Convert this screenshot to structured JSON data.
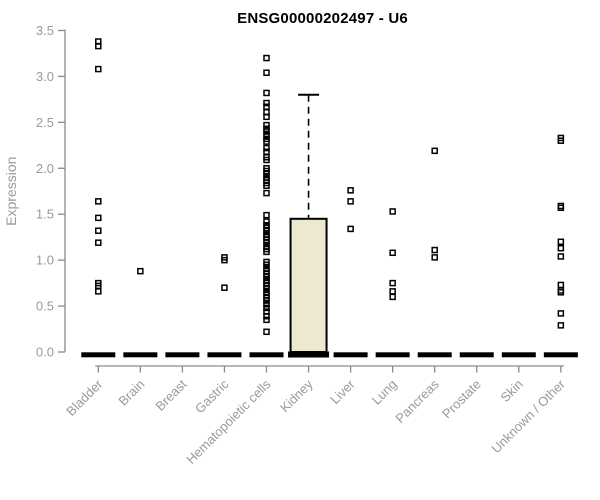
{
  "colors": {
    "title_color": "#000000",
    "axis_color": "#8a8a8a",
    "tick_label_color": "#9a9a9a",
    "point_color": "#000000",
    "box_fill": "#ede8d0",
    "box_stroke": "#000000",
    "zero_bar_color": "#000000",
    "background": "#ffffff"
  },
  "chart_data": {
    "type": "boxplot",
    "title": "ENSG00000202497 - U6",
    "xlabel": "",
    "ylabel": "Expression",
    "ylim": [
      0,
      3.5
    ],
    "yticks": [
      0,
      0.5,
      1,
      1.5,
      2,
      2.5,
      3,
      3.5
    ],
    "grid": false,
    "legend": null,
    "categories": [
      "Bladder",
      "Brain",
      "Breast",
      "Gastric",
      "Hematopoietic cells",
      "Kidney",
      "Liver",
      "Lung",
      "Pancreas",
      "Prostate",
      "Skin",
      "Unknown / Other"
    ],
    "series": [
      {
        "category": "Bladder",
        "box": {
          "q1": 0,
          "median": 0,
          "q3": 0,
          "whisker_low": 0,
          "whisker_high": 0
        },
        "points": [
          3.38,
          3.33,
          3.08,
          1.64,
          1.46,
          1.32,
          1.19,
          0.75,
          0.72,
          0.66
        ]
      },
      {
        "category": "Brain",
        "box": {
          "q1": 0,
          "median": 0,
          "q3": 0,
          "whisker_low": 0,
          "whisker_high": 0
        },
        "points": [
          0.88
        ]
      },
      {
        "category": "Breast",
        "box": {
          "q1": 0,
          "median": 0,
          "q3": 0,
          "whisker_low": 0,
          "whisker_high": 0
        },
        "points": []
      },
      {
        "category": "Gastric",
        "box": {
          "q1": 0,
          "median": 0,
          "q3": 0,
          "whisker_low": 0,
          "whisker_high": 0
        },
        "points": [
          1.03,
          1.0,
          0.7
        ]
      },
      {
        "category": "Hematopoietic cells",
        "box": {
          "q1": 0,
          "median": 0,
          "q3": 0,
          "whisker_low": 0,
          "whisker_high": 0
        },
        "points": [
          3.2,
          3.04,
          2.82,
          2.71,
          2.67,
          2.61,
          2.56,
          2.47,
          2.43,
          2.4,
          2.36,
          2.32,
          2.29,
          2.22,
          2.18,
          2.12,
          2.09,
          2.0,
          1.97,
          1.94,
          1.9,
          1.87,
          1.84,
          1.81,
          1.73,
          1.49,
          1.42,
          1.38,
          1.35,
          1.32,
          1.28,
          1.25,
          1.22,
          1.19,
          1.15,
          1.12,
          1.09,
          0.98,
          0.95,
          0.91,
          0.88,
          0.85,
          0.82,
          0.78,
          0.75,
          0.72,
          0.69,
          0.65,
          0.62,
          0.59,
          0.56,
          0.52,
          0.48,
          0.44,
          0.39,
          0.35,
          0.22
        ]
      },
      {
        "category": "Kidney",
        "box": {
          "q1": 0,
          "median": 0,
          "q3": 1.45,
          "whisker_low": 0,
          "whisker_high": 2.8
        },
        "points": []
      },
      {
        "category": "Liver",
        "box": {
          "q1": 0,
          "median": 0,
          "q3": 0,
          "whisker_low": 0,
          "whisker_high": 0
        },
        "points": [
          1.76,
          1.64,
          1.34
        ]
      },
      {
        "category": "Lung",
        "box": {
          "q1": 0,
          "median": 0,
          "q3": 0,
          "whisker_low": 0,
          "whisker_high": 0
        },
        "points": [
          1.53,
          1.08,
          0.75,
          0.66,
          0.6
        ]
      },
      {
        "category": "Pancreas",
        "box": {
          "q1": 0,
          "median": 0,
          "q3": 0,
          "whisker_low": 0,
          "whisker_high": 0
        },
        "points": [
          2.19,
          1.11,
          1.03
        ]
      },
      {
        "category": "Prostate",
        "box": {
          "q1": 0,
          "median": 0,
          "q3": 0,
          "whisker_low": 0,
          "whisker_high": 0
        },
        "points": []
      },
      {
        "category": "Skin",
        "box": {
          "q1": 0,
          "median": 0,
          "q3": 0,
          "whisker_low": 0,
          "whisker_high": 0
        },
        "points": []
      },
      {
        "category": "Unknown / Other",
        "box": {
          "q1": 0,
          "median": 0,
          "q3": 0,
          "whisker_low": 0,
          "whisker_high": 0
        },
        "points": [
          2.33,
          2.3,
          1.59,
          1.57,
          1.2,
          1.13,
          1.04,
          0.73,
          0.67,
          0.65,
          0.42,
          0.29
        ]
      }
    ]
  }
}
